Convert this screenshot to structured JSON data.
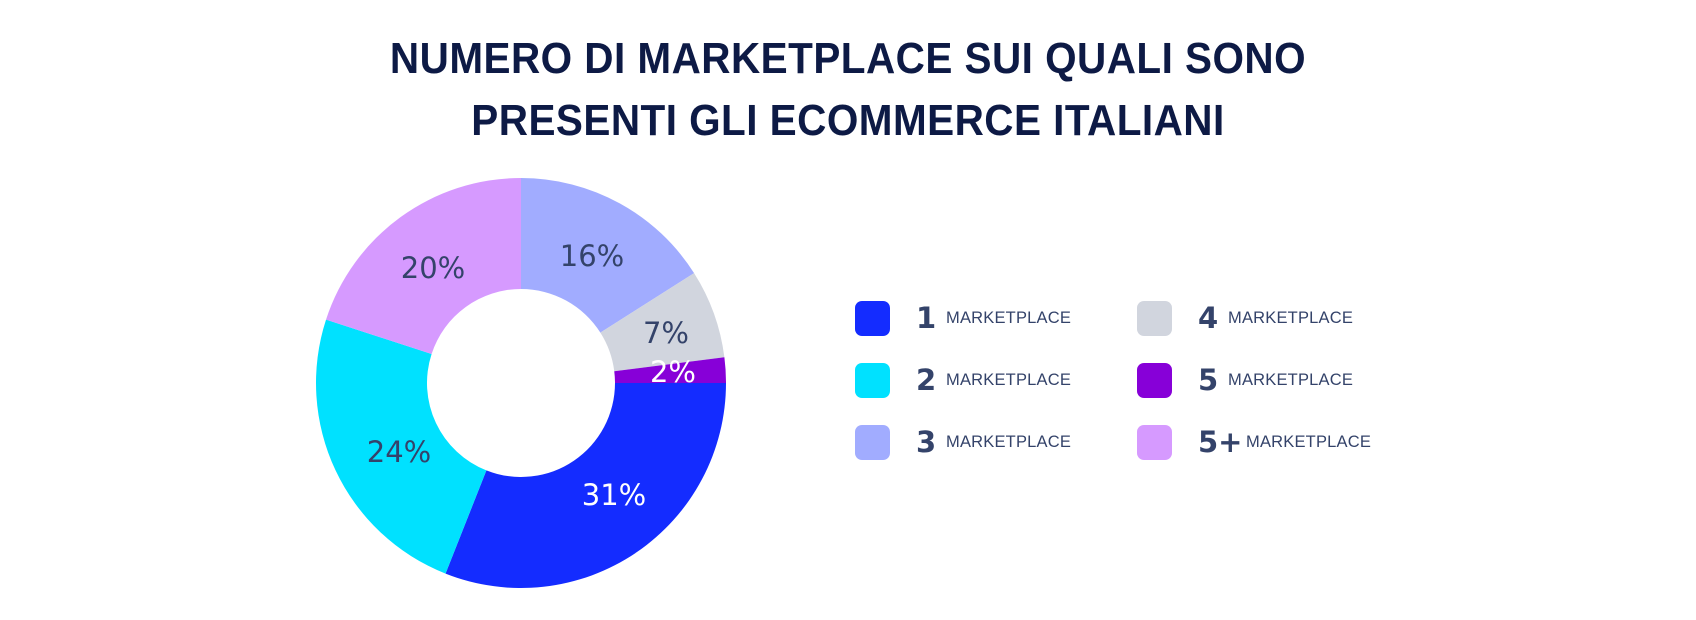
{
  "title": {
    "line1": "NUMERO DI MARKETPLACE SUI QUALI SONO",
    "line2": "PRESENTI GLI ECOMMERCE ITALIANI"
  },
  "legend": {
    "items": [
      {
        "number": "1",
        "label": "MARKETPLACE",
        "color": "#142cff"
      },
      {
        "number": "2",
        "label": "MARKETPLACE",
        "color": "#00e1ff"
      },
      {
        "number": "3",
        "label": "MARKETPLACE",
        "color": "#a1acff"
      },
      {
        "number": "4",
        "label": "MARKETPLACE",
        "color": "#d1d5de"
      },
      {
        "number": "5",
        "label": "MARKETPLACE",
        "color": "#8700d8"
      },
      {
        "number": "5+",
        "label": "MARKETPLACE",
        "color": "#d69aff"
      }
    ]
  },
  "slices": [
    {
      "label": "31%",
      "color": "#142cff",
      "text_color": "#ffffff"
    },
    {
      "label": "24%",
      "color": "#00e1ff",
      "text_color": "#34436a"
    },
    {
      "label": "20%",
      "color": "#d69aff",
      "text_color": "#34436a"
    },
    {
      "label": "16%",
      "color": "#a1acff",
      "text_color": "#34436a"
    },
    {
      "label": "7%",
      "color": "#d1d5de",
      "text_color": "#34436a"
    },
    {
      "label": "2%",
      "color": "#8700d8",
      "text_color": "#ffffff"
    }
  ],
  "chart_data": {
    "type": "pie",
    "subtype": "donut",
    "title": "NUMERO DI MARKETPLACE SUI QUALI SONO PRESENTI GLI ECOMMERCE ITALIANI",
    "categories": [
      "1 MARKETPLACE",
      "2 MARKETPLACE",
      "3 MARKETPLACE",
      "4 MARKETPLACE",
      "5 MARKETPLACE",
      "5+ MARKETPLACE"
    ],
    "values": [
      31,
      24,
      16,
      7,
      2,
      20
    ],
    "unit": "%",
    "colors": [
      "#142cff",
      "#00e1ff",
      "#a1acff",
      "#d1d5de",
      "#8700d8",
      "#d69aff"
    ],
    "legend_position": "right",
    "start_angle": "3 o'clock, clockwise: 1, 2, 5+, 3, 4, 5"
  }
}
